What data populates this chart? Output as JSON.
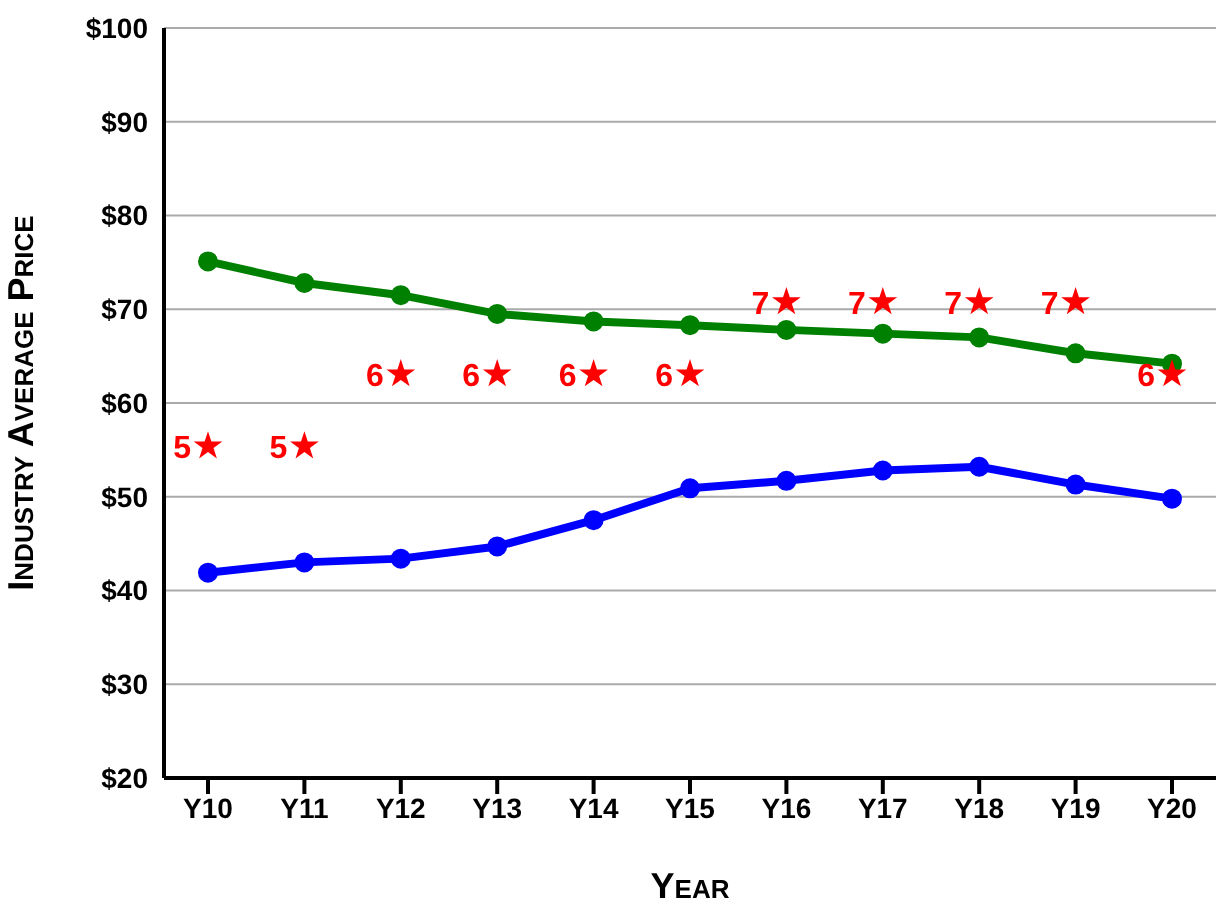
{
  "chart_data": {
    "type": "line",
    "xlabel": "Year",
    "ylabel": "Industry Average Price",
    "categories": [
      "Y10",
      "Y11",
      "Y12",
      "Y13",
      "Y14",
      "Y15",
      "Y16",
      "Y17",
      "Y18",
      "Y19",
      "Y20"
    ],
    "series": [
      {
        "color": "#008000",
        "marker": "circle",
        "values": [
          75.1,
          72.8,
          71.5,
          69.5,
          68.7,
          68.3,
          67.8,
          67.4,
          67.0,
          65.3,
          64.2
        ]
      },
      {
        "color": "#0000ff",
        "marker": "circle",
        "values": [
          41.9,
          43.0,
          43.4,
          44.7,
          47.5,
          50.9,
          51.7,
          52.8,
          53.2,
          51.3,
          49.8
        ]
      },
      {
        "type": "scatter",
        "axis": "y2",
        "color": "#ff0000",
        "marker": "star",
        "values": [
          5,
          5,
          6,
          6,
          6,
          6,
          7,
          7,
          7,
          7,
          6
        ],
        "value_labels": [
          "5",
          "5",
          "6",
          "6",
          "6",
          "6",
          "7",
          "7",
          "7",
          "7",
          "6"
        ]
      }
    ],
    "ylim": [
      20,
      100
    ],
    "yticks": [
      {
        "value": 20,
        "label": "$20"
      },
      {
        "value": 30,
        "label": "$30"
      },
      {
        "value": 40,
        "label": "$40"
      },
      {
        "value": 50,
        "label": "$50"
      },
      {
        "value": 60,
        "label": "$60"
      },
      {
        "value": 70,
        "label": "$70"
      },
      {
        "value": 80,
        "label": "$80"
      },
      {
        "value": 90,
        "label": "$90"
      },
      {
        "value": 100,
        "label": "$100"
      }
    ],
    "y2lim": [
      0.4,
      10.8
    ],
    "grid": "y",
    "legend": false
  }
}
